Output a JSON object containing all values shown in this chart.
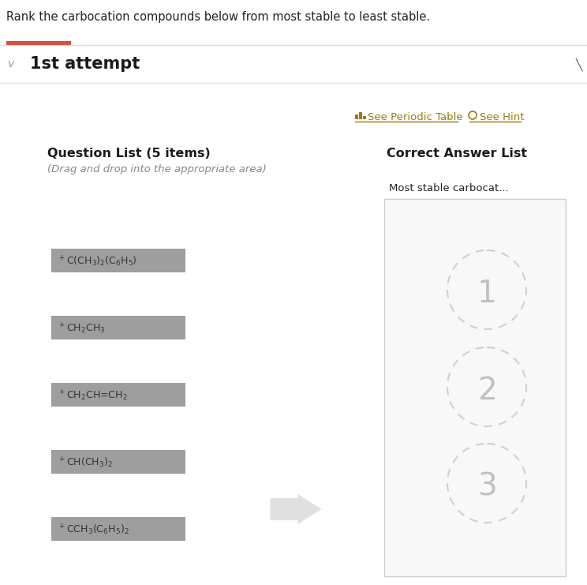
{
  "title": "Rank the carbocation compounds below from most stable to least stable.",
  "attempt_label": "1st attempt",
  "see_periodic_table": "See Periodic Table",
  "see_hint": "See Hint",
  "question_list_title": "Question List (5 items)",
  "question_list_subtitle": "(Drag and drop into the appropriate area)",
  "correct_answer_title": "Correct Answer List",
  "correct_answer_subtitle": "Most stable carbocat...",
  "compounds_display": [
    "$^+$C(CH$_3$)$_2$(C$_6$H$_5$)",
    "$^+$CH$_2$CH$_3$",
    "$^+$CH$_2$CH=CH$_2$",
    "$^+$CH(CH$_3$)$_2$",
    "$^+$CCH$_3$(C$_6$H$_5$)$_2$"
  ],
  "rank_numbers": [
    "1",
    "2",
    "3"
  ],
  "bg_color": "#ffffff",
  "compound_box_color": "#9e9e9e",
  "compound_text_color": "#333333",
  "rank_circle_color": "#d0d0d0",
  "rank_text_color": "#c0c0c0",
  "answer_box_border": "#cccccc",
  "red_line_color": "#d94f3b",
  "gray_line_color": "#e0e0e0",
  "arrow_color": "#e0e0e0",
  "title_color": "#222222",
  "attempt_color": "#1a1a1a",
  "link_color": "#9a7d0a",
  "subtitle_italic_color": "#888888",
  "header_bold_color": "#1a1a1a",
  "chevron_color": "#999999",
  "edit_icon_color": "#555555"
}
